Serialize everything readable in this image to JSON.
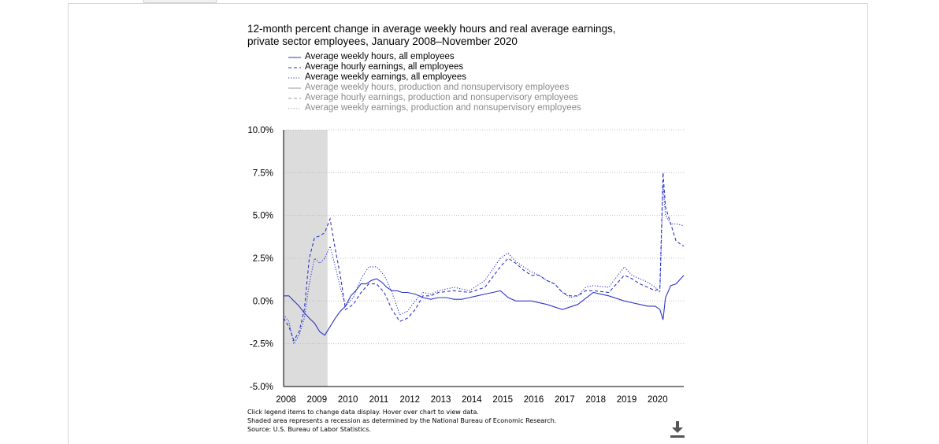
{
  "chart_data": {
    "type": "line",
    "title_lines": [
      "12-month percent change in average weekly hours and real average earnings,",
      "private sector employees, January 2008–November 2020"
    ],
    "xlabel": "",
    "ylabel": "",
    "ylim": [
      -5.0,
      10.0
    ],
    "xlim": [
      2008.0,
      2020.92
    ],
    "x_tick_labels": [
      "2008",
      "2009",
      "2010",
      "2011",
      "2012",
      "2013",
      "2014",
      "2015",
      "2016",
      "2017",
      "2018",
      "2019",
      "2020"
    ],
    "x_tick_values": [
      2008,
      2009,
      2010,
      2011,
      2012,
      2013,
      2014,
      2015,
      2016,
      2017,
      2018,
      2019,
      2020
    ],
    "y_tick_labels": [
      "10.0%",
      "7.5%",
      "5.0%",
      "2.5%",
      "0.0%",
      "-2.5%",
      "-5.0%"
    ],
    "y_tick_values": [
      10.0,
      7.5,
      5.0,
      2.5,
      0.0,
      -2.5,
      -5.0
    ],
    "grid": "horizontal-dotted",
    "recession": {
      "start": 2008.0,
      "end": 2009.42,
      "color": "#dcdcdc"
    },
    "legend": [
      {
        "label": "Average weekly hours, all employees",
        "style": "solid",
        "color": "#2b35c8",
        "active": true
      },
      {
        "label": "Average hourly earnings, all employees",
        "style": "dashed",
        "color": "#2b35c8",
        "active": true
      },
      {
        "label": "Average weekly earnings, all employees",
        "style": "dotted",
        "color": "#2b35c8",
        "active": true
      },
      {
        "label": "Average weekly hours, production and nonsupervisory employees",
        "style": "solid",
        "color": "#9a9a9a",
        "active": false
      },
      {
        "label": "Average hourly earnings, production and nonsupervisory employees",
        "style": "dashed",
        "color": "#9a9a9a",
        "active": false
      },
      {
        "label": "Average weekly earnings, production and nonsupervisory employees",
        "style": "dotted",
        "color": "#9a9a9a",
        "active": false
      }
    ],
    "series": [
      {
        "name": "Average weekly hours, all employees",
        "style": "solid",
        "color": "#2b35c8",
        "x": [
          2008.0,
          2008.17,
          2008.33,
          2008.5,
          2008.67,
          2008.83,
          2009.0,
          2009.17,
          2009.33,
          2009.5,
          2009.67,
          2009.83,
          2010.0,
          2010.17,
          2010.33,
          2010.5,
          2010.67,
          2010.83,
          2011.0,
          2011.17,
          2011.33,
          2011.5,
          2011.67,
          2011.83,
          2012.0,
          2012.25,
          2012.5,
          2012.75,
          2013.0,
          2013.25,
          2013.5,
          2013.75,
          2014.0,
          2014.25,
          2014.5,
          2014.75,
          2015.0,
          2015.25,
          2015.5,
          2015.75,
          2016.0,
          2016.5,
          2017.0,
          2017.5,
          2018.0,
          2018.5,
          2019.0,
          2019.25,
          2019.5,
          2019.75,
          2020.0,
          2020.15,
          2020.25,
          2020.33,
          2020.5,
          2020.67,
          2020.92
        ],
        "y": [
          0.3,
          0.3,
          0.0,
          -0.3,
          -0.7,
          -1.0,
          -1.3,
          -1.8,
          -2.0,
          -1.5,
          -1.0,
          -0.6,
          -0.3,
          0.3,
          0.6,
          1.0,
          1.0,
          1.2,
          1.3,
          1.1,
          0.8,
          0.6,
          0.6,
          0.5,
          0.5,
          0.4,
          0.2,
          0.1,
          0.2,
          0.2,
          0.1,
          0.1,
          0.2,
          0.3,
          0.4,
          0.5,
          0.6,
          0.2,
          0.0,
          0.0,
          0.0,
          -0.2,
          -0.5,
          -0.2,
          0.5,
          0.3,
          0.0,
          -0.1,
          -0.2,
          -0.3,
          -0.3,
          -0.5,
          -1.1,
          0.2,
          0.9,
          1.0,
          1.5
        ]
      },
      {
        "name": "Average hourly earnings, all employees",
        "style": "dashed",
        "color": "#2b35c8",
        "x": [
          2008.0,
          2008.17,
          2008.33,
          2008.5,
          2008.67,
          2008.83,
          2009.0,
          2009.17,
          2009.33,
          2009.5,
          2009.67,
          2009.83,
          2010.0,
          2010.25,
          2010.5,
          2010.75,
          2011.0,
          2011.25,
          2011.5,
          2011.75,
          2012.0,
          2012.25,
          2012.5,
          2012.75,
          2013.0,
          2013.5,
          2014.0,
          2014.5,
          2015.0,
          2015.25,
          2015.5,
          2015.75,
          2016.0,
          2016.25,
          2016.5,
          2016.75,
          2017.0,
          2017.25,
          2017.5,
          2017.75,
          2018.0,
          2018.5,
          2019.0,
          2019.25,
          2019.5,
          2019.75,
          2020.0,
          2020.15,
          2020.25,
          2020.33,
          2020.5,
          2020.67,
          2020.92
        ],
        "y": [
          -1.0,
          -1.5,
          -2.3,
          -1.8,
          -0.5,
          2.5,
          3.7,
          3.8,
          4.0,
          4.8,
          3.0,
          1.5,
          -0.5,
          -0.2,
          0.5,
          1.0,
          1.0,
          0.5,
          -0.5,
          -1.2,
          -1.0,
          -0.5,
          0.3,
          0.3,
          0.5,
          0.6,
          0.5,
          0.8,
          2.0,
          2.5,
          2.2,
          1.8,
          1.5,
          1.5,
          1.2,
          1.0,
          0.5,
          0.3,
          0.3,
          0.6,
          0.6,
          0.5,
          1.5,
          1.3,
          1.0,
          0.8,
          0.6,
          0.8,
          7.5,
          5.5,
          4.5,
          3.5,
          3.2
        ]
      },
      {
        "name": "Average weekly earnings, all employees",
        "style": "dotted",
        "color": "#2b35c8",
        "x": [
          2008.0,
          2008.17,
          2008.33,
          2008.5,
          2008.67,
          2008.83,
          2009.0,
          2009.17,
          2009.33,
          2009.5,
          2009.67,
          2009.83,
          2010.0,
          2010.25,
          2010.5,
          2010.75,
          2011.0,
          2011.25,
          2011.5,
          2011.75,
          2012.0,
          2012.25,
          2012.5,
          2012.75,
          2013.0,
          2013.5,
          2014.0,
          2014.5,
          2015.0,
          2015.25,
          2015.5,
          2015.75,
          2016.0,
          2016.25,
          2016.5,
          2016.75,
          2017.0,
          2017.25,
          2017.5,
          2017.75,
          2018.0,
          2018.5,
          2019.0,
          2019.25,
          2019.5,
          2019.75,
          2020.0,
          2020.15,
          2020.25,
          2020.33,
          2020.5,
          2020.67,
          2020.92
        ],
        "y": [
          -0.8,
          -1.2,
          -2.5,
          -2.0,
          -1.0,
          1.0,
          2.5,
          2.2,
          2.5,
          3.2,
          2.0,
          0.8,
          -0.3,
          0.2,
          1.3,
          2.0,
          2.0,
          1.5,
          0.5,
          -0.8,
          -0.6,
          0.0,
          0.5,
          0.4,
          0.6,
          0.8,
          0.6,
          1.2,
          2.5,
          2.8,
          2.3,
          2.0,
          1.7,
          1.5,
          1.2,
          1.0,
          0.5,
          0.2,
          0.3,
          0.8,
          0.9,
          0.8,
          2.0,
          1.5,
          1.3,
          1.1,
          0.8,
          0.5,
          6.8,
          5.0,
          4.5,
          4.5,
          4.4
        ]
      }
    ]
  },
  "notes": {
    "line1": "Click legend items to change data display. Hover over chart to view data.",
    "line2": "Shaded area represents a recession as determined by the National Bureau of Economic Research.",
    "line3": "Source: U.S. Bureau of Labor Statistics."
  },
  "download": {
    "icon": "download-icon",
    "color": "#555555"
  }
}
